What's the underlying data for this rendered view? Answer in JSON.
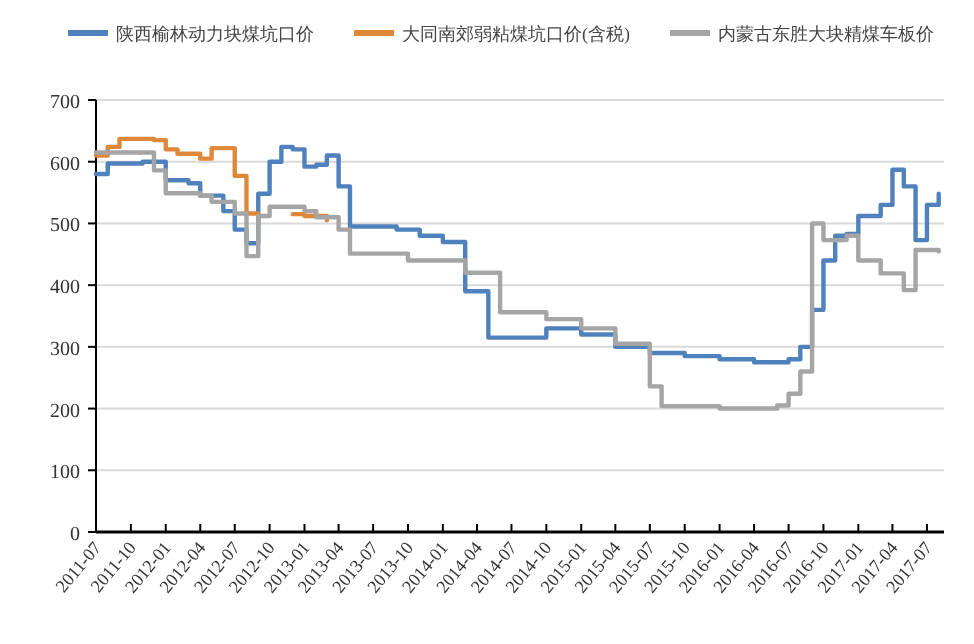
{
  "chart_data": {
    "type": "step",
    "legend": "top",
    "grid": "y",
    "marker": "none",
    "line_style": "solid",
    "xlim": [
      "2011-07",
      "2017-08-15"
    ],
    "xticks": [
      "2011-07",
      "2011-10",
      "2012-01",
      "2012-04",
      "2012-07",
      "2012-10",
      "2013-01",
      "2013-04",
      "2013-07",
      "2013-10",
      "2014-01",
      "2014-04",
      "2014-07",
      "2014-10",
      "2015-01",
      "2015-04",
      "2015-07",
      "2015-10",
      "2016-01",
      "2016-04",
      "2016-07",
      "2016-10",
      "2017-01",
      "2017-04",
      "2017-07"
    ],
    "ylim": [
      0,
      700
    ],
    "yticks": [
      0,
      100,
      200,
      300,
      400,
      500,
      600,
      700
    ],
    "series": [
      {
        "name": "陕西榆林动力块煤坑口价",
        "color": "#4f81bd",
        "x": [
          "2011-07",
          "2011-08",
          "2011-11",
          "2011-12",
          "2012-01",
          "2012-03",
          "2012-04",
          "2012-06",
          "2012-07",
          "2012-08",
          "2012-09",
          "2012-10",
          "2012-11",
          "2012-12",
          "2013-01",
          "2013-02",
          "2013-03",
          "2013-04",
          "2013-05",
          "2013-09",
          "2013-11",
          "2014-01",
          "2014-03",
          "2014-05",
          "2014-10",
          "2015-01",
          "2015-04",
          "2015-07",
          "2015-10",
          "2016-01",
          "2016-04",
          "2016-07",
          "2016-08",
          "2016-09",
          "2016-10",
          "2016-11",
          "2016-12",
          "2017-01",
          "2017-03",
          "2017-04",
          "2017-05",
          "2017-06",
          "2017-07",
          "2017-08"
        ],
        "values": [
          580,
          597,
          600,
          600,
          570,
          565,
          545,
          520,
          490,
          468,
          548,
          600,
          624,
          620,
          592,
          595,
          610,
          560,
          495,
          490,
          480,
          470,
          390,
          315,
          330,
          320,
          300,
          290,
          285,
          280,
          275,
          280,
          300,
          360,
          440,
          480,
          483,
          512,
          530,
          587,
          560,
          473,
          530,
          548
        ]
      },
      {
        "name": "大同南郊弱粘煤坑口价(含税)",
        "color": "#e0883a",
        "x": [
          "2011-07",
          "2011-08",
          "2011-09",
          "2011-12",
          "2012-01",
          "2012-02",
          "2012-04",
          "2012-05",
          "2012-06",
          "2012-07",
          "2012-08",
          "2012-09",
          "2012-11",
          "2012-12",
          "2013-01",
          "2013-03"
        ],
        "values": [
          610,
          624,
          637,
          635,
          620,
          613,
          605,
          622,
          622,
          577,
          516,
          502,
          null,
          515,
          512,
          505
        ]
      },
      {
        "name": "内蒙古东胜大块精煤车板价",
        "color": "#a5a5a5",
        "x": [
          "2011-07",
          "2011-11",
          "2011-12",
          "2012-01",
          "2012-04",
          "2012-05",
          "2012-06",
          "2012-07",
          "2012-08",
          "2012-09",
          "2012-10",
          "2013-01",
          "2013-02",
          "2013-03",
          "2013-04",
          "2013-05",
          "2013-10",
          "2014-03",
          "2014-06",
          "2014-10",
          "2015-01",
          "2015-04",
          "2015-07",
          "2015-08",
          "2016-01",
          "2016-06",
          "2016-07",
          "2016-08",
          "2016-09",
          "2016-10",
          "2016-12",
          "2017-01",
          "2017-03",
          "2017-05",
          "2017-06",
          "2017-08"
        ],
        "values": [
          615,
          615,
          586,
          549,
          545,
          535,
          535,
          516,
          447,
          512,
          527,
          520,
          510,
          510,
          490,
          451,
          440,
          420,
          356,
          345,
          330,
          305,
          236,
          204,
          200,
          205,
          224,
          260,
          500,
          473,
          480,
          440,
          419,
          392,
          457,
          455
        ]
      }
    ]
  }
}
